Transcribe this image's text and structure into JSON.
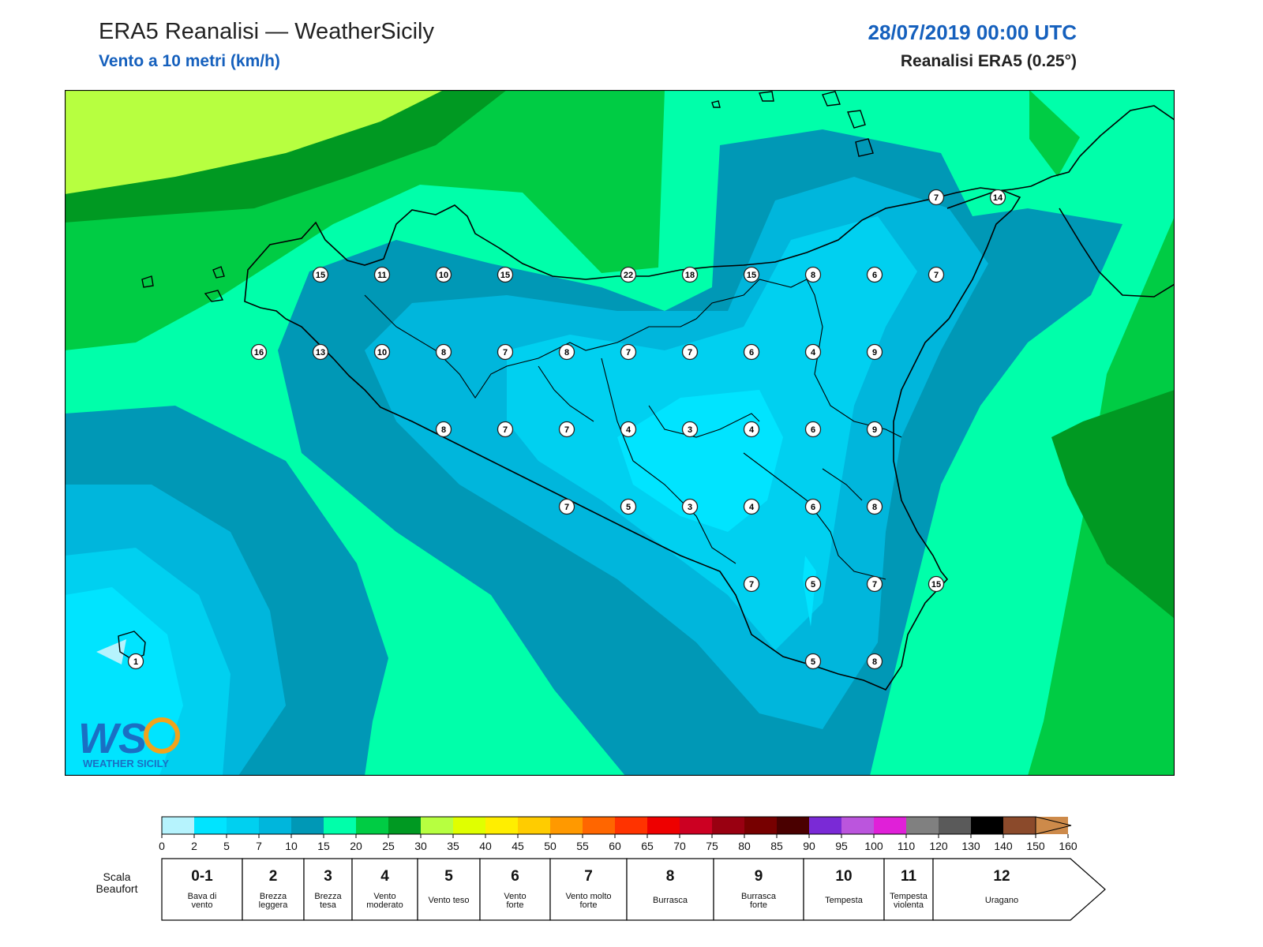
{
  "header": {
    "title": "ERA5 Reanalisi — WeatherSicily",
    "subtitle": "Vento a 10 metri (km/h)",
    "datetime": "28/07/2019 00:00 UTC",
    "model": "Reanalisi ERA5 (0.25°)"
  },
  "map": {
    "stations": [
      {
        "value": "7",
        "col": 14,
        "row": 0
      },
      {
        "value": "14",
        "col": 15,
        "row": 0
      },
      {
        "value": "15",
        "col": 4,
        "row": 1
      },
      {
        "value": "11",
        "col": 5,
        "row": 1
      },
      {
        "value": "10",
        "col": 6,
        "row": 1
      },
      {
        "value": "15",
        "col": 7,
        "row": 1
      },
      {
        "value": "22",
        "col": 9,
        "row": 1
      },
      {
        "value": "18",
        "col": 10,
        "row": 1
      },
      {
        "value": "15",
        "col": 11,
        "row": 1
      },
      {
        "value": "8",
        "col": 12,
        "row": 1
      },
      {
        "value": "6",
        "col": 13,
        "row": 1
      },
      {
        "value": "7",
        "col": 14,
        "row": 1
      },
      {
        "value": "16",
        "col": 3,
        "row": 2
      },
      {
        "value": "13",
        "col": 4,
        "row": 2
      },
      {
        "value": "10",
        "col": 5,
        "row": 2
      },
      {
        "value": "8",
        "col": 6,
        "row": 2
      },
      {
        "value": "7",
        "col": 7,
        "row": 2
      },
      {
        "value": "8",
        "col": 8,
        "row": 2
      },
      {
        "value": "7",
        "col": 9,
        "row": 2
      },
      {
        "value": "7",
        "col": 10,
        "row": 2
      },
      {
        "value": "6",
        "col": 11,
        "row": 2
      },
      {
        "value": "4",
        "col": 12,
        "row": 2
      },
      {
        "value": "9",
        "col": 13,
        "row": 2
      },
      {
        "value": "8",
        "col": 6,
        "row": 3
      },
      {
        "value": "7",
        "col": 7,
        "row": 3
      },
      {
        "value": "7",
        "col": 8,
        "row": 3
      },
      {
        "value": "4",
        "col": 9,
        "row": 3
      },
      {
        "value": "3",
        "col": 10,
        "row": 3
      },
      {
        "value": "4",
        "col": 11,
        "row": 3
      },
      {
        "value": "6",
        "col": 12,
        "row": 3
      },
      {
        "value": "9",
        "col": 13,
        "row": 3
      },
      {
        "value": "7",
        "col": 8,
        "row": 4
      },
      {
        "value": "5",
        "col": 9,
        "row": 4
      },
      {
        "value": "3",
        "col": 10,
        "row": 4
      },
      {
        "value": "4",
        "col": 11,
        "row": 4
      },
      {
        "value": "6",
        "col": 12,
        "row": 4
      },
      {
        "value": "8",
        "col": 13,
        "row": 4
      },
      {
        "value": "7",
        "col": 11,
        "row": 5
      },
      {
        "value": "5",
        "col": 12,
        "row": 5
      },
      {
        "value": "7",
        "col": 13,
        "row": 5
      },
      {
        "value": "15",
        "col": 14,
        "row": 5
      },
      {
        "value": "5",
        "col": 12,
        "row": 6
      },
      {
        "value": "8",
        "col": 13,
        "row": 6
      },
      {
        "value": "1",
        "col": 1,
        "row": 6
      }
    ]
  },
  "legend": {
    "colors": [
      "#b6f3fd",
      "#00e4ff",
      "#00d0f0",
      "#00b6dc",
      "#0098b6",
      "#00ffaa",
      "#00cc44",
      "#009922",
      "#b7ff40",
      "#e0ff00",
      "#ffee00",
      "#ffcc00",
      "#ff9900",
      "#ff6600",
      "#ff3300",
      "#ee0000",
      "#cc0022",
      "#990011",
      "#770000",
      "#4a0000",
      "#7a2ad6",
      "#bb55dd",
      "#e020d8",
      "#808080",
      "#5a5a5a",
      "#000000",
      "#8b4a2b",
      "#cd8a4a"
    ],
    "ticks": [
      "0",
      "2",
      "5",
      "7",
      "10",
      "15",
      "20",
      "25",
      "30",
      "35",
      "40",
      "45",
      "50",
      "55",
      "60",
      "65",
      "70",
      "75",
      "80",
      "85",
      "90",
      "95",
      "100",
      "110",
      "120",
      "130",
      "140",
      "150",
      "160"
    ],
    "beaufort_title": "Scala Beaufort",
    "beaufort": [
      {
        "num": "0-1",
        "label": "Bava di vento"
      },
      {
        "num": "2",
        "label": "Brezza leggera"
      },
      {
        "num": "3",
        "label": "Brezza tesa"
      },
      {
        "num": "4",
        "label": "Vento moderato"
      },
      {
        "num": "5",
        "label": "Vento teso"
      },
      {
        "num": "6",
        "label": "Vento forte"
      },
      {
        "num": "7",
        "label": "Vento molto forte"
      },
      {
        "num": "8",
        "label": "Burrasca"
      },
      {
        "num": "9",
        "label": "Burrasca forte"
      },
      {
        "num": "10",
        "label": "Tempesta"
      },
      {
        "num": "11",
        "label": "Tempesta violenta"
      },
      {
        "num": "12",
        "label": "Uragano"
      }
    ]
  },
  "logo": {
    "text": "WS",
    "caption": "WEATHER SICILY"
  }
}
